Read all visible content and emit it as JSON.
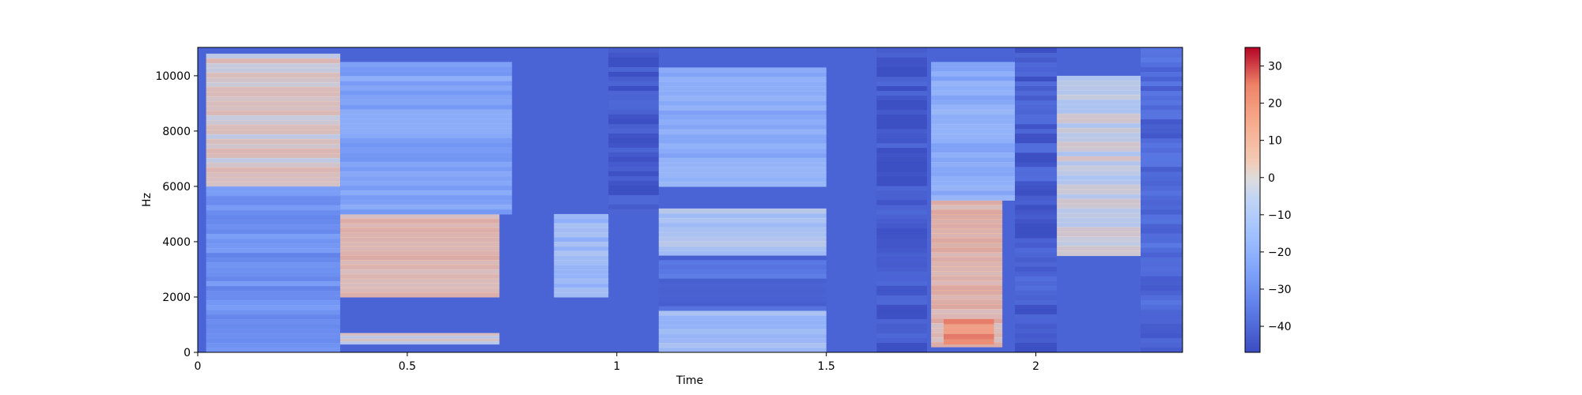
{
  "chart_data": {
    "type": "heatmap",
    "title": "",
    "xlabel": "Time",
    "ylabel": "Hz",
    "xlim": [
      0,
      2.35
    ],
    "ylim": [
      0,
      11025
    ],
    "x_ticks": [
      0,
      0.5,
      1,
      1.5,
      2
    ],
    "x_tick_labels": [
      "0",
      "0.5",
      "1",
      "1.5",
      "2"
    ],
    "y_ticks": [
      0,
      2000,
      4000,
      6000,
      8000,
      10000
    ],
    "y_tick_labels": [
      "0",
      "2000",
      "4000",
      "6000",
      "8000",
      "10000"
    ],
    "colorbar": {
      "range": [
        -47,
        35
      ],
      "ticks": [
        30,
        20,
        10,
        0,
        -10,
        -20,
        -30,
        -40
      ],
      "tick_labels": [
        "30",
        "20",
        "10",
        "0",
        "−10",
        "−20",
        "−30",
        "−40"
      ],
      "colormap": "coolwarm"
    },
    "grid": false,
    "regions_db": [
      {
        "t": [
          0.02,
          0.34
        ],
        "f": [
          6000,
          10800
        ],
        "db": 2
      },
      {
        "t": [
          0.02,
          0.34
        ],
        "f": [
          0,
          6000
        ],
        "db": -28
      },
      {
        "t": [
          0.34,
          0.72
        ],
        "f": [
          2000,
          5000
        ],
        "db": 6
      },
      {
        "t": [
          0.34,
          0.72
        ],
        "f": [
          300,
          700
        ],
        "db": 0
      },
      {
        "t": [
          0.34,
          0.75
        ],
        "f": [
          5000,
          10500
        ],
        "db": -22
      },
      {
        "t": [
          0.85,
          0.98
        ],
        "f": [
          2000,
          5000
        ],
        "db": -12
      },
      {
        "t": [
          0.98,
          1.1
        ],
        "f": [
          5000,
          11000
        ],
        "db": -45
      },
      {
        "t": [
          1.1,
          1.5
        ],
        "f": [
          3500,
          5200
        ],
        "db": -8
      },
      {
        "t": [
          1.1,
          1.5
        ],
        "f": [
          6000,
          10300
        ],
        "db": -18
      },
      {
        "t": [
          1.1,
          1.5
        ],
        "f": [
          1500,
          3500
        ],
        "db": -38
      },
      {
        "t": [
          1.1,
          1.5
        ],
        "f": [
          0,
          1500
        ],
        "db": -12
      },
      {
        "t": [
          1.62,
          1.74
        ],
        "f": [
          0,
          11000
        ],
        "db": -45
      },
      {
        "t": [
          1.75,
          1.92
        ],
        "f": [
          200,
          5500
        ],
        "db": 8
      },
      {
        "t": [
          1.78,
          1.9
        ],
        "f": [
          300,
          1200
        ],
        "db": 22
      },
      {
        "t": [
          1.75,
          1.95
        ],
        "f": [
          5500,
          10500
        ],
        "db": -18
      },
      {
        "t": [
          1.95,
          2.05
        ],
        "f": [
          0,
          11000
        ],
        "db": -43
      },
      {
        "t": [
          2.05,
          2.25
        ],
        "f": [
          3500,
          10000
        ],
        "db": -2
      },
      {
        "t": [
          2.25,
          2.35
        ],
        "f": [
          0,
          11000
        ],
        "db": -40
      }
    ]
  }
}
